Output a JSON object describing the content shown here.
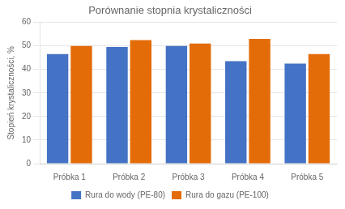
{
  "chart_data": {
    "type": "bar",
    "title": "Porównanie stopnia krystaliczności",
    "ylabel": "Stopień krystaliczności, %",
    "categories": [
      "Próbka 1",
      "Próbka 2",
      "Próbka 3",
      "Próbka 4",
      "Próbka 5"
    ],
    "series": [
      {
        "name": "Rura do wody (PE-80)",
        "color": "#4472C4",
        "values": [
          46.5,
          49.5,
          50.0,
          43.5,
          42.5
        ]
      },
      {
        "name": "Rura do gazu (PE-100)",
        "color": "#E36C09",
        "values": [
          50.0,
          52.5,
          51.0,
          53.0,
          46.5
        ]
      }
    ],
    "ylim": [
      0,
      60
    ],
    "yticks": [
      0,
      10,
      20,
      30,
      40,
      50,
      60
    ],
    "grid": true,
    "legend": "bottom"
  }
}
